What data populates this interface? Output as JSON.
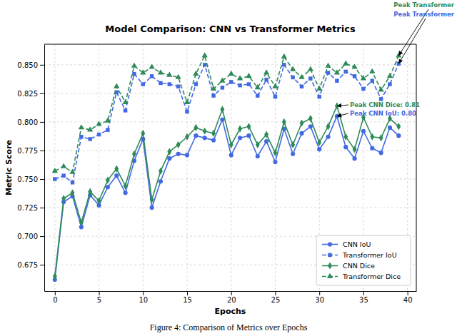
{
  "chart_data": {
    "type": "line",
    "title": "Model Comparison: CNN vs Transformer Metrics",
    "x_label": "Epochs",
    "y_label": "Metric Score",
    "caption": "Figure 4: Comparison of Metrics over Epochs",
    "x": [
      0,
      1,
      2,
      3,
      4,
      5,
      6,
      7,
      8,
      9,
      10,
      11,
      12,
      13,
      14,
      15,
      16,
      17,
      18,
      19,
      20,
      21,
      22,
      23,
      24,
      25,
      26,
      27,
      28,
      29,
      30,
      31,
      32,
      33,
      34,
      35,
      36,
      37,
      38,
      39
    ],
    "series": [
      {
        "name": "CNN IoU",
        "color": "#4169e1",
        "marker": "circle",
        "line_style": "solid",
        "values": [
          0.662,
          0.73,
          0.735,
          0.708,
          0.736,
          0.727,
          0.743,
          0.753,
          0.738,
          0.766,
          0.785,
          0.725,
          0.748,
          0.768,
          0.772,
          0.771,
          0.788,
          0.786,
          0.784,
          0.802,
          0.771,
          0.786,
          0.788,
          0.77,
          0.783,
          0.765,
          0.794,
          0.772,
          0.79,
          0.796,
          0.776,
          0.787,
          0.805,
          0.778,
          0.768,
          0.792,
          0.777,
          0.773,
          0.795,
          0.788
        ]
      },
      {
        "name": "Transformer IoU",
        "color": "#4169e1",
        "marker": "square",
        "line_style": "dashed",
        "values": [
          0.75,
          0.753,
          0.747,
          0.787,
          0.785,
          0.789,
          0.793,
          0.826,
          0.81,
          0.842,
          0.833,
          0.84,
          0.834,
          0.833,
          0.831,
          0.809,
          0.833,
          0.85,
          0.823,
          0.83,
          0.835,
          0.832,
          0.833,
          0.823,
          0.837,
          0.822,
          0.85,
          0.839,
          0.831,
          0.838,
          0.822,
          0.843,
          0.836,
          0.844,
          0.84,
          0.829,
          0.836,
          0.82,
          0.833,
          0.851
        ]
      },
      {
        "name": "CNN Dice",
        "color": "#2e8b57",
        "marker": "diamond",
        "line_style": "solid",
        "values": [
          0.665,
          0.733,
          0.738,
          0.712,
          0.739,
          0.731,
          0.749,
          0.759,
          0.744,
          0.772,
          0.79,
          0.732,
          0.757,
          0.774,
          0.78,
          0.787,
          0.795,
          0.792,
          0.79,
          0.811,
          0.78,
          0.794,
          0.796,
          0.78,
          0.789,
          0.773,
          0.8,
          0.78,
          0.799,
          0.803,
          0.782,
          0.796,
          0.814,
          0.787,
          0.776,
          0.804,
          0.787,
          0.786,
          0.803,
          0.796
        ]
      },
      {
        "name": "Transformer Dice",
        "color": "#2e8b57",
        "marker": "triangle",
        "line_style": "dashed",
        "values": [
          0.757,
          0.761,
          0.756,
          0.795,
          0.793,
          0.798,
          0.801,
          0.831,
          0.817,
          0.849,
          0.843,
          0.848,
          0.843,
          0.841,
          0.839,
          0.817,
          0.842,
          0.858,
          0.829,
          0.836,
          0.842,
          0.838,
          0.84,
          0.83,
          0.843,
          0.831,
          0.857,
          0.846,
          0.839,
          0.846,
          0.829,
          0.849,
          0.843,
          0.851,
          0.848,
          0.838,
          0.844,
          0.828,
          0.84,
          0.858
        ]
      }
    ],
    "xlim": [
      -1.2,
      41
    ],
    "xticks": [
      0,
      5,
      10,
      15,
      20,
      25,
      30,
      35,
      40
    ],
    "ylim": [
      0.652,
      0.868
    ],
    "yticks": [
      0.675,
      {
        "value": 0.7,
        "label": "0.700"
      },
      0.725,
      {
        "value": 0.75,
        "label": "0.750"
      },
      0.775,
      {
        "value": 0.8,
        "label": "0.800"
      },
      0.825,
      {
        "value": 0.85,
        "label": "0.850"
      }
    ],
    "grid": true,
    "legend": "lower right",
    "annotations": [
      {
        "text": "Peak CNN Dice: 0.81",
        "x": 32,
        "y": 0.814,
        "color": "#2e8b57"
      },
      {
        "text": "Peak CNN IoU: 0.80",
        "x": 32,
        "y": 0.805,
        "color": "#4169e1"
      },
      {
        "text": "Peak Transformer",
        "x": 39,
        "y": 0.858,
        "color": "#2e8b57"
      },
      {
        "text": "Peak Transformer",
        "x": 39,
        "y": 0.851,
        "color": "#4169e1"
      }
    ]
  }
}
